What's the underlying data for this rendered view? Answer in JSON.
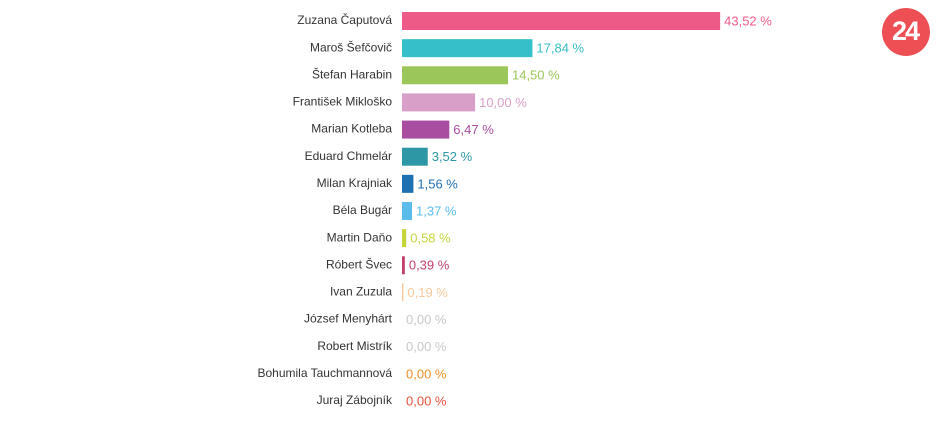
{
  "logo": "24",
  "chart_data": {
    "type": "bar",
    "orientation": "horizontal",
    "categories": [
      "Zuzana Čaputová",
      "Maroš Šefčovič",
      "Štefan Harabin",
      "František Mikloško",
      "Marian Kotleba",
      "Eduard Chmelár",
      "Milan Krajniak",
      "Béla Bugár",
      "Martin Daňo",
      "Róbert Švec",
      "Ivan Zuzula",
      "József Menyhárt",
      "Robert Mistrík",
      "Bohumila Tauchmannová",
      "Juraj Zábojník"
    ],
    "values": [
      43.52,
      17.84,
      14.5,
      10.0,
      6.47,
      3.52,
      1.56,
      1.37,
      0.58,
      0.39,
      0.19,
      0.0,
      0.0,
      0.0,
      0.0
    ],
    "value_labels": [
      "43,52 %",
      "17,84 %",
      "14,50 %",
      "10,00 %",
      "6,47 %",
      "3,52 %",
      "1,56 %",
      "1,37 %",
      "0,58 %",
      "0,39 %",
      "0,19 %",
      "0,00 %",
      "0,00 %",
      "0,00 %",
      "0,00 %"
    ],
    "colors": [
      "#ee5a87",
      "#36bfc9",
      "#9bc65a",
      "#d8a0c8",
      "#a94da0",
      "#2e97a6",
      "#1f6fb3",
      "#5bbcec",
      "#c6d43c",
      "#c2406d",
      "#f7c99a",
      "#c8c8c8",
      "#c8c8c8",
      "#ee8f2a",
      "#e4503a"
    ]
  }
}
